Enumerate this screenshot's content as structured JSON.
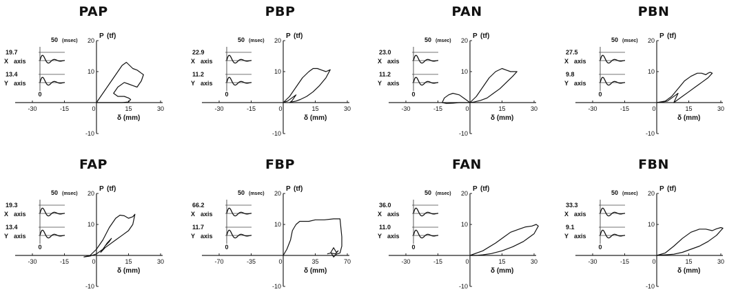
{
  "chart_data": [
    {
      "type": "line",
      "title": "PAP",
      "xlim": [
        -30,
        30
      ],
      "x_ticks": [
        -30,
        -15,
        15,
        30
      ],
      "ylim": [
        -10,
        20
      ],
      "y_ticks": [
        20,
        10,
        -10
      ],
      "x_origin_label": "0",
      "xlabel": "δ (mm)",
      "ylabel": "P",
      "y_unit": "(tf)",
      "inset_time": "50",
      "inset_time_unit": "(msec)",
      "inset": {
        "x_value": "19.7",
        "x_label": "X",
        "x_label2": "axis",
        "y_value": "13.4",
        "y_label": "Y",
        "y_label2": "axis",
        "origin": "0"
      },
      "series": [
        {
          "x": [
            0,
            2,
            4,
            6,
            9,
            12,
            14,
            17,
            19,
            20,
            21,
            22,
            21,
            19,
            17,
            15,
            13,
            10,
            9,
            8,
            10,
            13,
            15,
            16,
            15,
            12,
            9,
            6,
            4,
            2,
            0
          ],
          "y": [
            0,
            2,
            4,
            6,
            9,
            12,
            13,
            11,
            10.5,
            10,
            9.5,
            9,
            7,
            5,
            5.5,
            6,
            6.5,
            5,
            4,
            3,
            2,
            2,
            1.5,
            1,
            0.2,
            0,
            0,
            0,
            0,
            0,
            0
          ]
        }
      ]
    },
    {
      "type": "line",
      "title": "PBP",
      "xlim": [
        -30,
        30
      ],
      "x_ticks": [
        -30,
        -15,
        15,
        30
      ],
      "ylim": [
        -10,
        20
      ],
      "y_ticks": [
        20,
        10,
        -10
      ],
      "x_origin_label": "0",
      "xlabel": "δ (mm)",
      "ylabel": "P",
      "y_unit": "(tf)",
      "inset_time": "50",
      "inset_time_unit": "(msec)",
      "inset": {
        "x_value": "22.9",
        "x_label": "X",
        "x_label2": "axis",
        "y_value": "11.2",
        "y_label": "Y",
        "y_label2": "axis",
        "origin": "0"
      },
      "series": [
        {
          "x": [
            0,
            3,
            6,
            9,
            12,
            14,
            16,
            18,
            20,
            21,
            22,
            20,
            17,
            14,
            11,
            8,
            6,
            4,
            3,
            4,
            5,
            6,
            4,
            2,
            0
          ],
          "y": [
            0,
            2,
            5,
            8,
            10,
            11,
            11,
            10.5,
            10,
            10.3,
            10.6,
            8,
            5.5,
            3.5,
            2,
            1,
            0.5,
            0.2,
            0,
            0.5,
            1.5,
            2.5,
            1.5,
            0.5,
            0
          ]
        }
      ]
    },
    {
      "type": "line",
      "title": "PAN",
      "xlim": [
        -30,
        30
      ],
      "x_ticks": [
        -30,
        -15,
        15,
        30
      ],
      "ylim": [
        -10,
        20
      ],
      "y_ticks": [
        20,
        10,
        -10
      ],
      "x_origin_label": "0",
      "xlabel": "δ (mm)",
      "ylabel": "P",
      "y_unit": "(tf)",
      "inset_time": "50",
      "inset_time_unit": "(msec)",
      "inset": {
        "x_value": "23.0",
        "x_label": "X",
        "x_label2": "axis",
        "y_value": "11.2",
        "y_label": "Y",
        "y_label2": "axis",
        "origin": "0"
      },
      "series": [
        {
          "x": [
            0,
            3,
            6,
            9,
            12,
            15,
            17,
            19,
            21,
            22,
            20,
            17,
            14,
            11,
            8,
            5,
            2,
            0,
            -2,
            -5,
            -8,
            -10,
            -12,
            -13,
            -11,
            -8,
            -5,
            -2,
            0
          ],
          "y": [
            0,
            2,
            5,
            8,
            10,
            11,
            10.5,
            10,
            10,
            10,
            8.5,
            6.5,
            4.5,
            3,
            1.5,
            0.7,
            0.2,
            0,
            1,
            2.5,
            3,
            2.5,
            1.5,
            0,
            -0.3,
            -0.2,
            0,
            0,
            0
          ]
        }
      ]
    },
    {
      "type": "line",
      "title": "PBN",
      "xlim": [
        -30,
        30
      ],
      "x_ticks": [
        -30,
        -15,
        15,
        30
      ],
      "ylim": [
        -10,
        20
      ],
      "y_ticks": [
        20,
        10,
        -10
      ],
      "x_origin_label": "0",
      "xlabel": "δ (mm)",
      "ylabel": "P",
      "y_unit": "(tf)",
      "inset_time": "50",
      "inset_time_unit": "(msec)",
      "inset": {
        "x_value": "27.5",
        "x_label": "X",
        "x_label2": "axis",
        "y_value": "9.8",
        "y_label": "Y",
        "y_label2": "axis",
        "origin": "0"
      },
      "series": [
        {
          "x": [
            0,
            4,
            7,
            10,
            13,
            16,
            19,
            21,
            23,
            24,
            25,
            26,
            24,
            21,
            18,
            15,
            12,
            10,
            8,
            9,
            10,
            9,
            7,
            5,
            3,
            0
          ],
          "y": [
            0,
            0.5,
            2,
            4.5,
            7,
            8.5,
            9.5,
            9.5,
            9,
            9.5,
            9.8,
            9.5,
            8,
            6.5,
            5,
            3.5,
            2,
            1,
            0,
            1.5,
            3,
            2.5,
            1.5,
            0.5,
            0.2,
            0
          ]
        }
      ]
    },
    {
      "type": "line",
      "title": "FAP",
      "xlim": [
        -30,
        30
      ],
      "x_ticks": [
        -30,
        -15,
        15,
        30
      ],
      "ylim": [
        -10,
        20
      ],
      "y_ticks": [
        20,
        10,
        -10
      ],
      "x_origin_label": "0",
      "xlabel": "δ (mm)",
      "ylabel": "P",
      "y_unit": "(tf)",
      "inset_time": "50",
      "inset_time_unit": "(msec)",
      "inset": {
        "x_value": "19.3",
        "x_label": "X",
        "x_label2": "axis",
        "y_value": "13.4",
        "y_label": "Y",
        "y_label2": "axis",
        "origin": "0"
      },
      "series": [
        {
          "x": [
            -6,
            -3,
            0,
            3,
            6,
            9,
            11,
            13,
            15,
            17,
            18,
            17,
            15,
            12,
            9,
            6,
            4,
            2,
            4,
            6,
            7,
            5,
            3,
            0,
            -3,
            -6
          ],
          "y": [
            -0.5,
            0,
            2,
            5,
            9,
            12,
            13,
            12.8,
            12,
            12.5,
            13.3,
            10,
            8,
            6.5,
            5,
            3.5,
            2.5,
            1,
            3,
            4.5,
            5.5,
            4,
            2,
            0.5,
            -0.2,
            -0.5
          ]
        }
      ]
    },
    {
      "type": "line",
      "title": "FBP",
      "xlim": [
        -70,
        70
      ],
      "x_ticks": [
        -70,
        -35,
        35,
        70
      ],
      "ylim": [
        -10,
        20
      ],
      "y_ticks": [
        20,
        10,
        -10
      ],
      "x_origin_label": "0",
      "xlabel": "δ (mm)",
      "ylabel": "P",
      "y_unit": "(tf)",
      "inset_time": "50",
      "inset_time_unit": "(msec)",
      "inset": {
        "x_value": "66.2",
        "x_label": "X",
        "x_label2": "axis",
        "y_value": "11.7",
        "y_label": "Y",
        "y_label2": "axis",
        "origin": "0"
      },
      "series": [
        {
          "x": [
            0,
            4,
            8,
            10,
            12,
            14,
            18,
            22,
            28,
            35,
            45,
            55,
            62,
            64,
            64,
            62,
            58,
            55,
            52,
            55,
            58,
            60,
            57,
            52,
            48
          ],
          "y": [
            0,
            2,
            5,
            8,
            9,
            10,
            11,
            11,
            11,
            11.5,
            11.5,
            11.8,
            11.8,
            6,
            3,
            0.8,
            0.4,
            -0.5,
            1,
            2.5,
            1,
            1.5,
            0.5,
            0.8,
            0.5
          ]
        }
      ]
    },
    {
      "type": "line",
      "title": "FAN",
      "xlim": [
        -30,
        30
      ],
      "x_ticks": [
        -30,
        -15,
        15,
        30
      ],
      "ylim": [
        -10,
        20
      ],
      "y_ticks": [
        20,
        10,
        -10
      ],
      "x_origin_label": "0",
      "xlabel": "δ (mm)",
      "ylabel": "P",
      "y_unit": "(tf)",
      "inset_time": "50",
      "inset_time_unit": "(msec)",
      "inset": {
        "x_value": "36.0",
        "x_label": "X",
        "x_label2": "axis",
        "y_value": "11.0",
        "y_label": "Y",
        "y_label2": "axis",
        "origin": "0"
      },
      "series": [
        {
          "x": [
            0,
            6,
            12,
            16,
            19,
            23,
            26,
            29,
            31,
            32,
            30,
            25,
            20,
            15,
            10,
            6,
            3,
            0
          ],
          "y": [
            0,
            1.5,
            4,
            6,
            7.5,
            8.5,
            9.2,
            9.5,
            10,
            9.5,
            7,
            4.5,
            2.8,
            1.5,
            0.6,
            0.2,
            0,
            0
          ]
        }
      ]
    },
    {
      "type": "line",
      "title": "FBN",
      "xlim": [
        -30,
        30
      ],
      "x_ticks": [
        -30,
        -15,
        15,
        30
      ],
      "ylim": [
        -10,
        20
      ],
      "y_ticks": [
        20,
        10,
        -10
      ],
      "x_origin_label": "0",
      "xlabel": "δ (mm)",
      "ylabel": "P",
      "y_unit": "(tf)",
      "inset_time": "50",
      "inset_time_unit": "(msec)",
      "inset": {
        "x_value": "33.3",
        "x_label": "X",
        "x_label2": "axis",
        "y_value": "9.1",
        "y_label": "Y",
        "y_label2": "axis",
        "origin": "0"
      },
      "series": [
        {
          "x": [
            0,
            4,
            8,
            12,
            16,
            20,
            23,
            26,
            28,
            30,
            31,
            28,
            24,
            20,
            16,
            12,
            8,
            4,
            0
          ],
          "y": [
            0,
            0.8,
            3,
            5.5,
            7.5,
            8.5,
            8.5,
            8,
            8.6,
            9,
            8.8,
            6.5,
            4.5,
            3,
            2,
            1,
            0.4,
            0.2,
            0
          ]
        }
      ]
    }
  ]
}
